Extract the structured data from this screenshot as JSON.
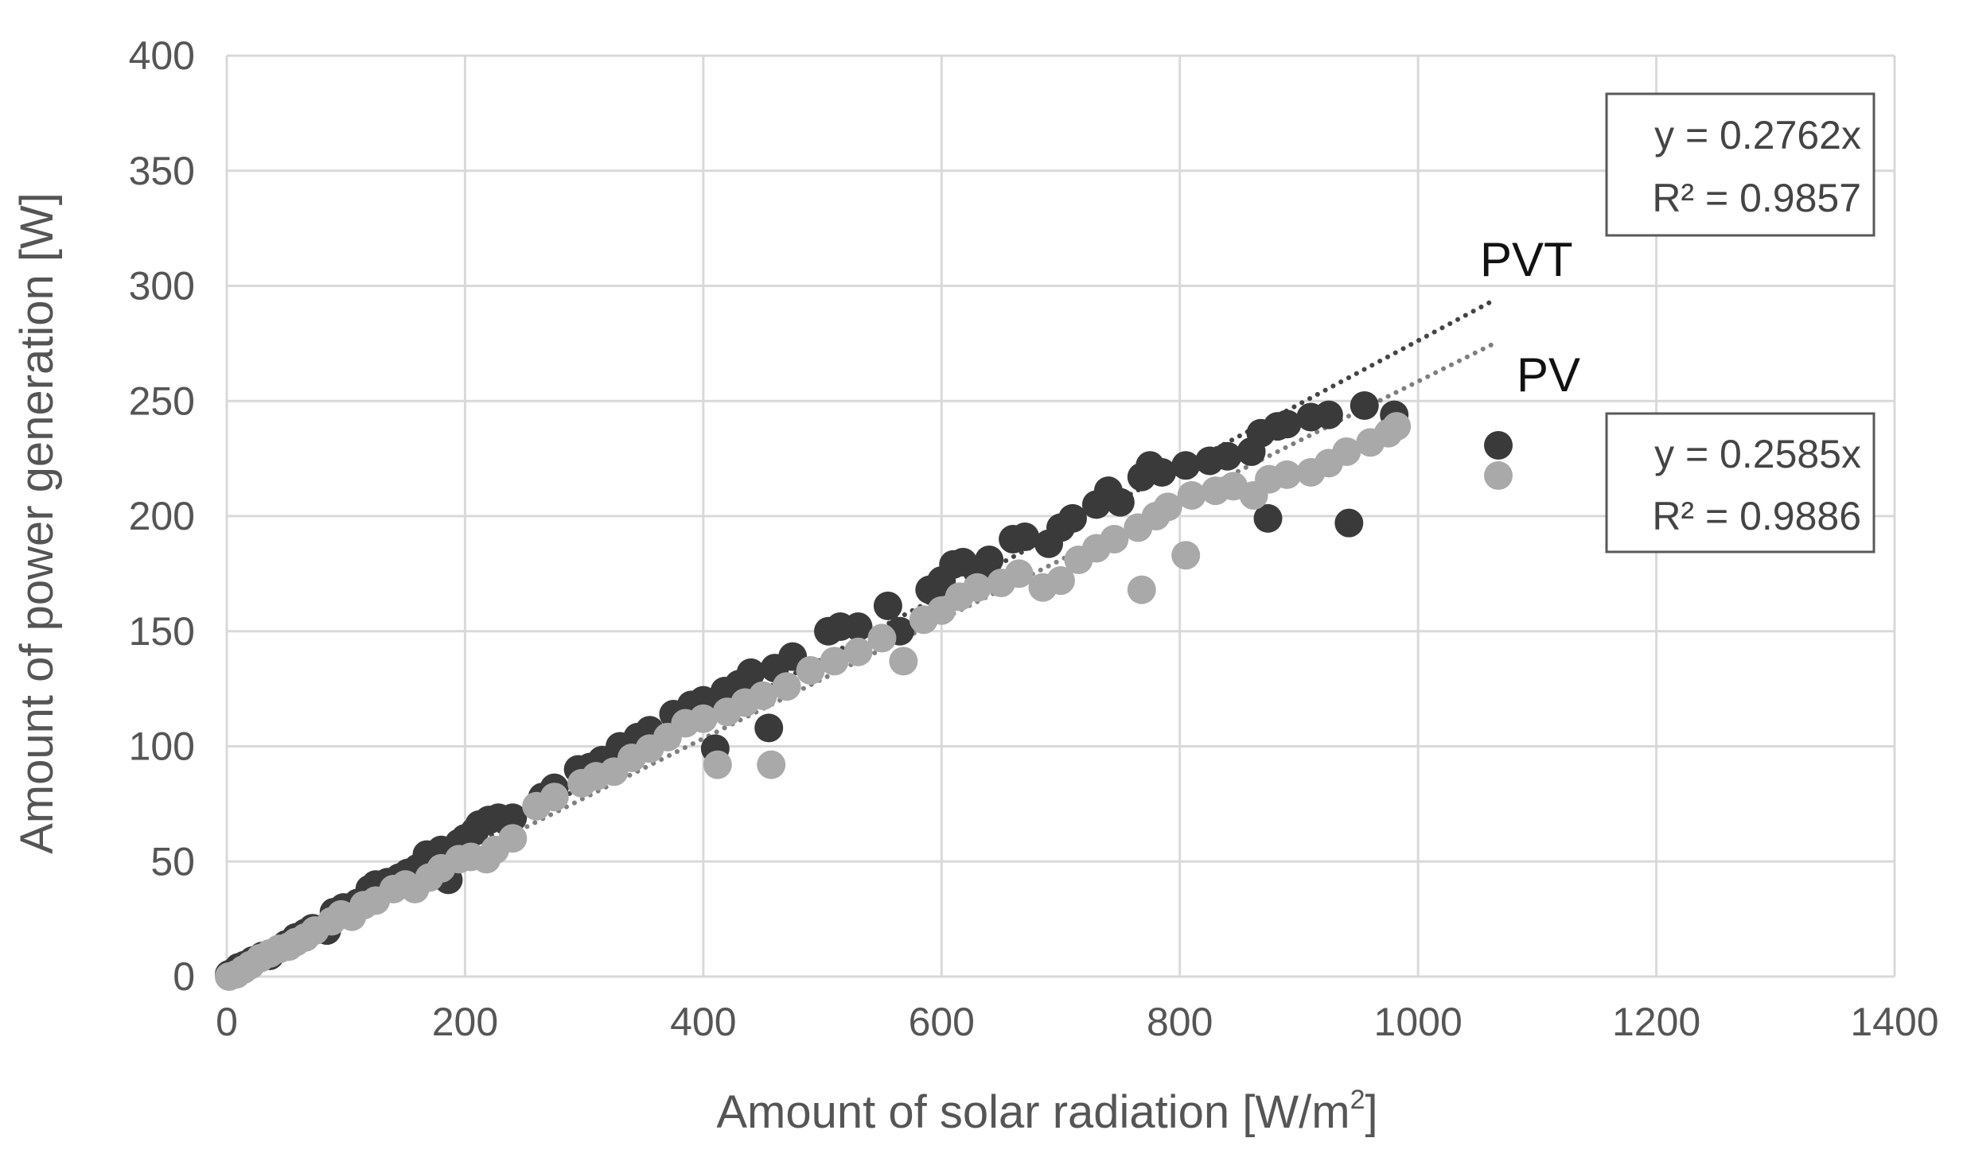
{
  "chart_data": {
    "type": "scatter",
    "title": "",
    "xlabel": "Amount  of solar radiation [W/m",
    "xlabel_sup": "2",
    "xlabel_end": "]",
    "ylabel": "Amount of power generation [W]",
    "xlim": [
      0,
      1400
    ],
    "ylim": [
      0,
      400
    ],
    "x_ticks": [
      0,
      200,
      400,
      600,
      800,
      1000,
      1200,
      1400
    ],
    "y_ticks": [
      0,
      50,
      100,
      150,
      200,
      250,
      300,
      350,
      400
    ],
    "grid": true,
    "legend_position": "right",
    "colors": {
      "pvt": "#3a3a3a",
      "pv": "#a9a9a9",
      "pvt_trend": "#444444",
      "pv_trend": "#7f7f7f",
      "grid": "#d9d9d9",
      "box": "#595959"
    },
    "series": [
      {
        "name": "PVT",
        "slope": 0.2762,
        "r2": 0.9857,
        "equation": "y = 0.2762x",
        "r2_label": "R² = 0.9857",
        "trend_x": [
          0,
          1065
        ],
        "points": [
          [
            2,
            1
          ],
          [
            6,
            2
          ],
          [
            10,
            4
          ],
          [
            15,
            5
          ],
          [
            22,
            7
          ],
          [
            30,
            9
          ],
          [
            36,
            9
          ],
          [
            44,
            12
          ],
          [
            50,
            14
          ],
          [
            58,
            17
          ],
          [
            66,
            19
          ],
          [
            72,
            21
          ],
          [
            84,
            20
          ],
          [
            90,
            28
          ],
          [
            98,
            30
          ],
          [
            110,
            32
          ],
          [
            120,
            38
          ],
          [
            125,
            40
          ],
          [
            135,
            41
          ],
          [
            145,
            43
          ],
          [
            152,
            45
          ],
          [
            160,
            47
          ],
          [
            168,
            53
          ],
          [
            175,
            52
          ],
          [
            180,
            55
          ],
          [
            186,
            42
          ],
          [
            195,
            58
          ],
          [
            200,
            60
          ],
          [
            208,
            63
          ],
          [
            212,
            66
          ],
          [
            220,
            68
          ],
          [
            228,
            69
          ],
          [
            240,
            69
          ],
          [
            265,
            78
          ],
          [
            275,
            82
          ],
          [
            295,
            90
          ],
          [
            305,
            91
          ],
          [
            315,
            94
          ],
          [
            330,
            100
          ],
          [
            345,
            104
          ],
          [
            355,
            107
          ],
          [
            375,
            114
          ],
          [
            390,
            118
          ],
          [
            400,
            120
          ],
          [
            410,
            99
          ],
          [
            418,
            124
          ],
          [
            430,
            127
          ],
          [
            440,
            132
          ],
          [
            455,
            108
          ],
          [
            460,
            134
          ],
          [
            475,
            139
          ],
          [
            505,
            150
          ],
          [
            515,
            152
          ],
          [
            530,
            152
          ],
          [
            555,
            161
          ],
          [
            565,
            150
          ],
          [
            590,
            168
          ],
          [
            600,
            172
          ],
          [
            610,
            179
          ],
          [
            618,
            180
          ],
          [
            630,
            176
          ],
          [
            640,
            181
          ],
          [
            660,
            190
          ],
          [
            670,
            191
          ],
          [
            690,
            188
          ],
          [
            700,
            195
          ],
          [
            710,
            199
          ],
          [
            730,
            205
          ],
          [
            740,
            211
          ],
          [
            750,
            206
          ],
          [
            768,
            217
          ],
          [
            775,
            222
          ],
          [
            785,
            219
          ],
          [
            805,
            222
          ],
          [
            825,
            224
          ],
          [
            840,
            226
          ],
          [
            860,
            228
          ],
          [
            868,
            236
          ],
          [
            874,
            199
          ],
          [
            882,
            239
          ],
          [
            890,
            240
          ],
          [
            910,
            243
          ],
          [
            925,
            244
          ],
          [
            942,
            197
          ],
          [
            955,
            248
          ],
          [
            980,
            244
          ]
        ]
      },
      {
        "name": "PV",
        "slope": 0.2585,
        "r2": 0.9886,
        "equation": "y = 0.2585x",
        "r2_label": "R² = 0.9886",
        "trend_x": [
          0,
          1065
        ],
        "points": [
          [
            2,
            0
          ],
          [
            8,
            1
          ],
          [
            14,
            3
          ],
          [
            20,
            5
          ],
          [
            28,
            8
          ],
          [
            36,
            10
          ],
          [
            44,
            12
          ],
          [
            52,
            13
          ],
          [
            58,
            15
          ],
          [
            66,
            17
          ],
          [
            74,
            20
          ],
          [
            88,
            24
          ],
          [
            96,
            27
          ],
          [
            105,
            26
          ],
          [
            115,
            31
          ],
          [
            125,
            33
          ],
          [
            140,
            38
          ],
          [
            150,
            40
          ],
          [
            158,
            38
          ],
          [
            170,
            43
          ],
          [
            180,
            47
          ],
          [
            195,
            51
          ],
          [
            205,
            52
          ],
          [
            218,
            51
          ],
          [
            225,
            55
          ],
          [
            240,
            60
          ],
          [
            260,
            74
          ],
          [
            275,
            78
          ],
          [
            298,
            84
          ],
          [
            310,
            87
          ],
          [
            325,
            89
          ],
          [
            340,
            95
          ],
          [
            355,
            99
          ],
          [
            370,
            104
          ],
          [
            385,
            110
          ],
          [
            400,
            112
          ],
          [
            412,
            92
          ],
          [
            420,
            115
          ],
          [
            435,
            119
          ],
          [
            450,
            122
          ],
          [
            457,
            92
          ],
          [
            470,
            126
          ],
          [
            490,
            133
          ],
          [
            510,
            137
          ],
          [
            530,
            141
          ],
          [
            550,
            147
          ],
          [
            568,
            137
          ],
          [
            585,
            155
          ],
          [
            600,
            159
          ],
          [
            615,
            165
          ],
          [
            630,
            169
          ],
          [
            650,
            171
          ],
          [
            665,
            175
          ],
          [
            685,
            169
          ],
          [
            700,
            172
          ],
          [
            715,
            181
          ],
          [
            730,
            186
          ],
          [
            745,
            190
          ],
          [
            765,
            195
          ],
          [
            768,
            168
          ],
          [
            780,
            200
          ],
          [
            790,
            204
          ],
          [
            805,
            183
          ],
          [
            810,
            209
          ],
          [
            830,
            211
          ],
          [
            845,
            213
          ],
          [
            862,
            209
          ],
          [
            875,
            216
          ],
          [
            890,
            218
          ],
          [
            910,
            219
          ],
          [
            925,
            223
          ],
          [
            940,
            228
          ],
          [
            960,
            232
          ],
          [
            975,
            236
          ],
          [
            982,
            239
          ]
        ]
      }
    ],
    "annotations": [
      {
        "text": "PVT",
        "anchor_x": 1060,
        "anchor_y": 310
      },
      {
        "text": "PV",
        "anchor_x": 1085,
        "anchor_y": 260
      }
    ]
  }
}
